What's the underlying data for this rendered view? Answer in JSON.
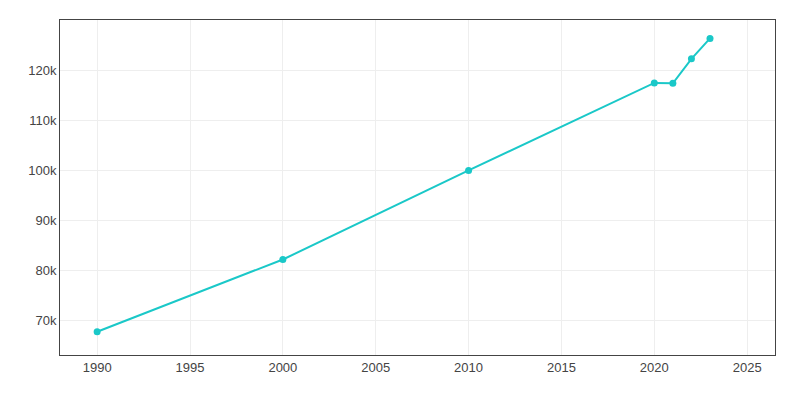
{
  "chart_data": {
    "type": "line",
    "x": [
      1990,
      2000,
      2010,
      2020,
      2021,
      2022,
      2023
    ],
    "values": [
      67643,
      82103,
      99919,
      117415,
      117344,
      122232,
      126318
    ],
    "color": "#1AC8C8",
    "marker": "circle",
    "xlim": [
      1988,
      2026.5
    ],
    "ylim": [
      63000,
      130000
    ],
    "xticks": [
      1990,
      1995,
      2000,
      2005,
      2010,
      2015,
      2020,
      2025
    ],
    "yticks": [
      {
        "value": 70000,
        "label": "70k"
      },
      {
        "value": 80000,
        "label": "80k"
      },
      {
        "value": 90000,
        "label": "90k"
      },
      {
        "value": 100000,
        "label": "100k"
      },
      {
        "value": 110000,
        "label": "110k"
      },
      {
        "value": 120000,
        "label": "120k"
      }
    ],
    "grid": true
  }
}
